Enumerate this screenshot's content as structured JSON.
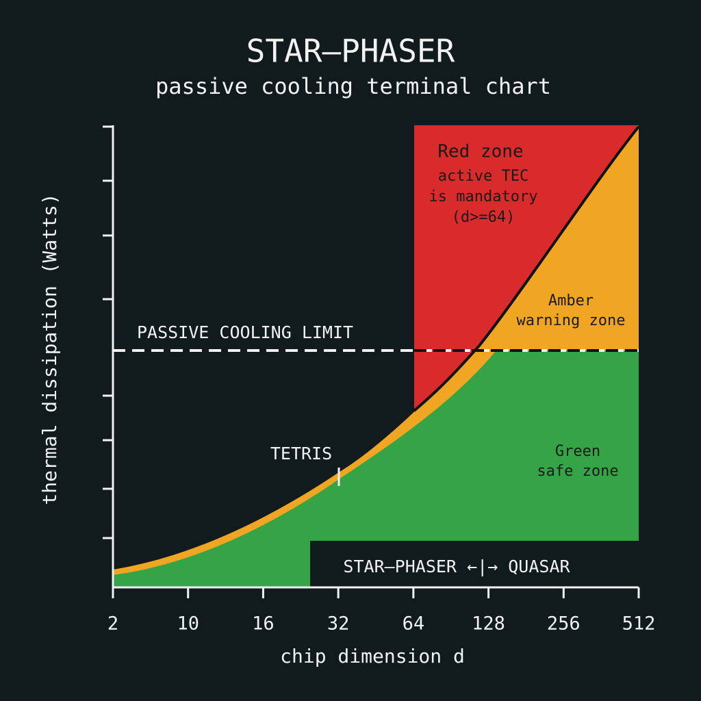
{
  "chart_data": {
    "type": "zones",
    "title": "STAR–PHASER",
    "subtitle": "passive cooling terminal chart",
    "y_axis_label": "thermal dissipation (Watts)",
    "x_axis_label": "chip dimension d",
    "categories": [
      "2",
      "10",
      "16",
      "32",
      "64",
      "128",
      "256",
      "512"
    ],
    "limit_label": "PASSIVE COOLING LIMIT",
    "red_zone": {
      "title": "Red zone",
      "lines": [
        "active TEC",
        "is mandatory",
        "(d>=64)"
      ]
    },
    "amber_zone": {
      "lines": [
        "Amber",
        "warning zone"
      ]
    },
    "green_zone": {
      "lines": [
        "Green",
        "safe zone"
      ]
    },
    "marker_label": "TETRIS",
    "legend_box": "STAR–PHASER ←|→ QUASAR"
  }
}
